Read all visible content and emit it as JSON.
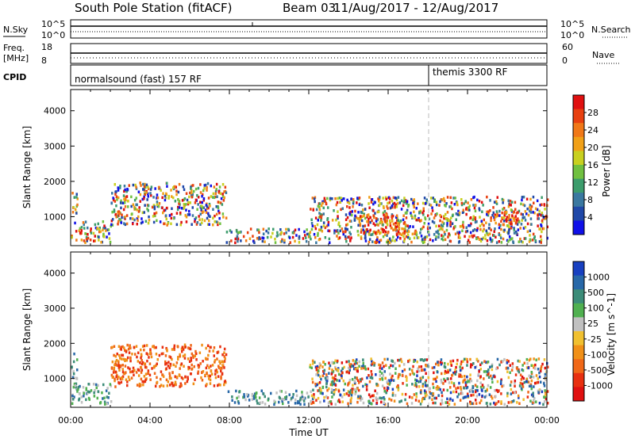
{
  "header": {
    "station": "South Pole Station (fitACF)",
    "beam": "Beam 03",
    "dates": "11/Aug/2017 - 12/Aug/2017"
  },
  "aux": {
    "nsky_label": "N.Sky",
    "nsky_ticks": [
      "10^5",
      "10^0"
    ],
    "nsearch_label": "N.Search",
    "nsearch_ticks": [
      "10^5",
      "10^0"
    ],
    "freq_label_1": "Freq.",
    "freq_label_2": "[MHz]",
    "freq_ticks": [
      "18",
      "8"
    ],
    "nave_label": "Nave",
    "nave_ticks": [
      "60",
      "0"
    ],
    "cpid_label": "CPID",
    "cpid_1": "normalsound (fast) 157 RF",
    "cpid_2": "themis 3300 RF",
    "cpid_switch_hour": 18
  },
  "chart_data": [
    {
      "type": "heatmap",
      "id": "power",
      "ylabel": "Slant Range [km]",
      "xlabel": "",
      "yticks": [
        "1000",
        "2000",
        "3000",
        "4000"
      ],
      "ylim": [
        180,
        4600
      ],
      "xlim": [
        0,
        24
      ],
      "colorbar": {
        "label": "Power [dB]",
        "ticks": [
          "4",
          "8",
          "12",
          "16",
          "20",
          "24",
          "28"
        ],
        "colors": [
          "#1010e8",
          "#2048a8",
          "#3a78a0",
          "#3c9c6c",
          "#70c040",
          "#c8d020",
          "#f0a018",
          "#f07818",
          "#e84010",
          "#e01010"
        ]
      },
      "scatter_regions": [
        {
          "x0": 0,
          "x1": 0.3,
          "y0": 1000,
          "y1": 1800,
          "level": "mixed"
        },
        {
          "x0": 0,
          "x1": 2,
          "y0": 300,
          "y1": 900,
          "level": "mixed"
        },
        {
          "x0": 2,
          "x1": 7.8,
          "y0": 800,
          "y1": 2000,
          "level": "mixed"
        },
        {
          "x0": 2.2,
          "x1": 2.8,
          "y0": 900,
          "y1": 1200,
          "level": "strong"
        },
        {
          "x0": 7.8,
          "x1": 12,
          "y0": 300,
          "y1": 700,
          "level": "weak"
        },
        {
          "x0": 12,
          "x1": 17.5,
          "y0": 300,
          "y1": 1600,
          "level": "mixed"
        },
        {
          "x0": 14.5,
          "x1": 17,
          "y0": 500,
          "y1": 1100,
          "level": "strong"
        },
        {
          "x0": 17.5,
          "x1": 24,
          "y0": 300,
          "y1": 1600,
          "level": "mixed"
        },
        {
          "x0": 21,
          "x1": 22.5,
          "y0": 800,
          "y1": 1200,
          "level": "strong"
        }
      ]
    },
    {
      "type": "heatmap",
      "id": "velocity",
      "ylabel": "Slant Range [km]",
      "xlabel": "Time UT",
      "yticks": [
        "1000",
        "2000",
        "3000",
        "4000"
      ],
      "xticks": [
        "00:00",
        "04:00",
        "08:00",
        "12:00",
        "16:00",
        "20:00",
        "00:00"
      ],
      "ylim": [
        180,
        4600
      ],
      "xlim": [
        0,
        24
      ],
      "colorbar": {
        "label": "Velocity [m s^-1]",
        "ticks": [
          "1000",
          "500",
          "100",
          "25",
          "-25",
          "-100",
          "-500",
          "-1000"
        ],
        "colors": [
          "#1840c0",
          "#2868a8",
          "#3c8c78",
          "#50b050",
          "#c0c0c0",
          "#f0c030",
          "#f09018",
          "#f06818",
          "#e83010",
          "#e01010"
        ]
      },
      "scatter_regions": [
        {
          "x0": 0,
          "x1": 0.3,
          "y0": 1000,
          "y1": 1800,
          "level": "positive"
        },
        {
          "x0": 0,
          "x1": 2,
          "y0": 300,
          "y1": 900,
          "level": "positive"
        },
        {
          "x0": 2,
          "x1": 7.8,
          "y0": 800,
          "y1": 2000,
          "level": "negative"
        },
        {
          "x0": 7.8,
          "x1": 12,
          "y0": 300,
          "y1": 700,
          "level": "positive"
        },
        {
          "x0": 12,
          "x1": 17.5,
          "y0": 300,
          "y1": 1600,
          "level": "mixed"
        },
        {
          "x0": 17.5,
          "x1": 24,
          "y0": 300,
          "y1": 1600,
          "level": "mixed"
        }
      ]
    }
  ]
}
